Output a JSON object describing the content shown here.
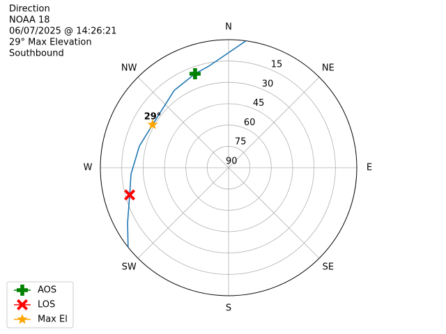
{
  "chart_data": {
    "type": "polar",
    "title_lines": [
      "Direction",
      "NOAA 18",
      "06/07/2025 @ 14:26:21",
      "29° Max Elevation",
      "Southbound"
    ],
    "rlim": [
      90,
      0
    ],
    "rticks": [
      15,
      30,
      45,
      60,
      75,
      90
    ],
    "thetaticks": [
      {
        "value": 0,
        "label": "N"
      },
      {
        "value": 45,
        "label": "NE"
      },
      {
        "value": 90,
        "label": "E"
      },
      {
        "value": 135,
        "label": "SE"
      },
      {
        "value": 180,
        "label": "S"
      },
      {
        "value": 225,
        "label": "SW"
      },
      {
        "value": 270,
        "label": "W"
      },
      {
        "value": 315,
        "label": "NW"
      }
    ],
    "grid": true,
    "track": {
      "color": "#1f77b4",
      "theta": [
        7.8,
        349,
        340.4,
        325,
        299.6,
        283.6,
        266.3,
        254.6,
        241.4,
        231.6
      ],
      "values": [
        0,
        17.3,
        19.9,
        23.6,
        28.7,
        25.6,
        21.4,
        18,
        9.3,
        0
      ]
    },
    "series": [
      {
        "name": "AOS",
        "color": "#008000",
        "marker": "plus",
        "theta": [
          340.4
        ],
        "values": [
          19.9
        ]
      },
      {
        "name": "LOS",
        "color": "#ff0000",
        "marker": "x",
        "theta": [
          254.6
        ],
        "values": [
          18
        ]
      },
      {
        "name": "Max El",
        "color": "#ffa500",
        "marker": "star",
        "theta": [
          299.6
        ],
        "values": [
          28.7
        ]
      }
    ],
    "annotation": "29°",
    "legend": "lower left"
  }
}
